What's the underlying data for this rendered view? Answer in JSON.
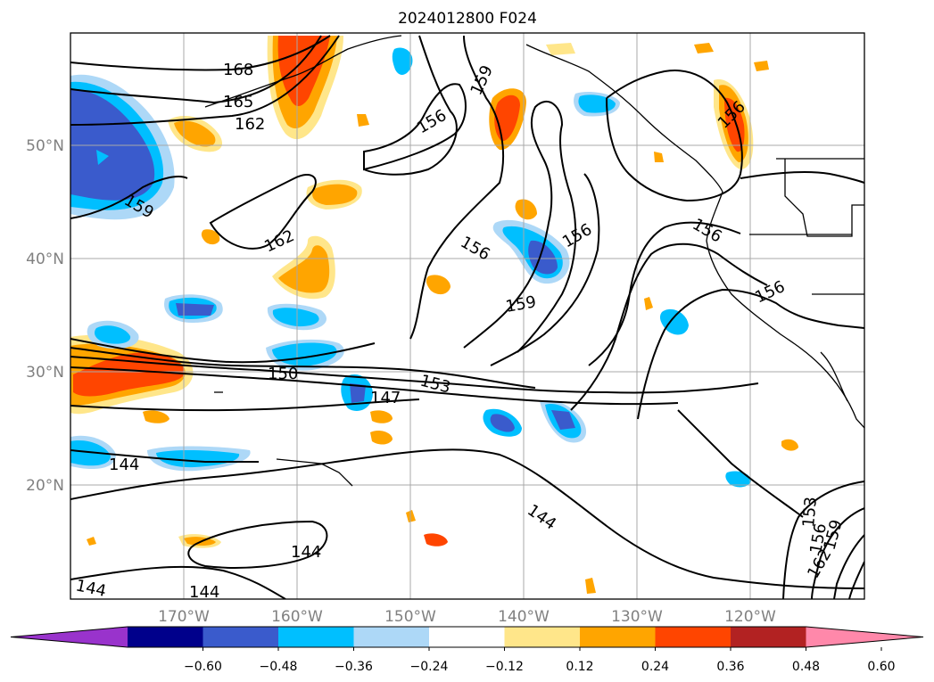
{
  "title": "2024012800 F024",
  "map": {
    "lon_labels": [
      "170°W",
      "160°W",
      "150°W",
      "140°W",
      "130°W",
      "120°W"
    ],
    "lat_labels": [
      "50°N",
      "40°N",
      "30°N",
      "20°N"
    ],
    "contour_labels": [
      "168",
      "165",
      "162",
      "159",
      "162",
      "156",
      "159",
      "156",
      "159",
      "156",
      "156",
      "156",
      "150",
      "147",
      "153",
      "144",
      "144",
      "144",
      "144",
      "144",
      "153",
      "156",
      "159",
      "162"
    ],
    "fill_colors": {
      "neg_strong": "#3a5bcc",
      "neg_mid": "#00bfff",
      "neg_weak": "#add8f7",
      "pos_weak": "#ffe68a",
      "pos_mid": "#ffa500",
      "pos_strong": "#ff4500"
    }
  },
  "colorbar": {
    "ticks": [
      "−0.60",
      "−0.48",
      "−0.36",
      "−0.24",
      "−0.12",
      "0.12",
      "0.24",
      "0.36",
      "0.48",
      "0.60"
    ],
    "colors": [
      "#9933cc",
      "#00008b",
      "#3a5bcc",
      "#00bfff",
      "#add8f7",
      "#ffffff",
      "#ffe68a",
      "#ffa500",
      "#ff4500",
      "#b22222",
      "#ff88aa"
    ]
  }
}
